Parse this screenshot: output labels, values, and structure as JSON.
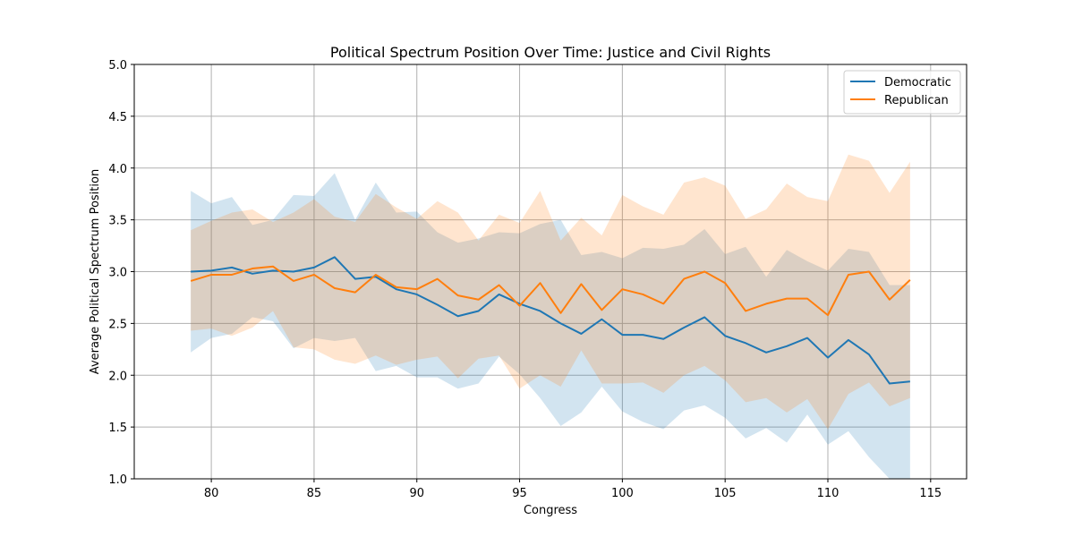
{
  "chart_data": {
    "type": "line",
    "title": "Political Spectrum Position Over Time: Justice and Civil Rights",
    "xlabel": "Congress",
    "ylabel": "Average Political Spectrum Position",
    "xlim": [
      76.25,
      116.75
    ],
    "ylim": [
      1.0,
      5.0
    ],
    "xticks": [
      80,
      85,
      90,
      95,
      100,
      105,
      110,
      115
    ],
    "yticks": [
      1.0,
      1.5,
      2.0,
      2.5,
      3.0,
      3.5,
      4.0,
      4.5,
      5.0
    ],
    "grid": true,
    "legend_position": "top-right",
    "x": [
      79,
      80,
      81,
      82,
      83,
      84,
      85,
      86,
      87,
      88,
      89,
      90,
      91,
      92,
      93,
      94,
      95,
      96,
      97,
      98,
      99,
      100,
      101,
      102,
      103,
      104,
      105,
      106,
      107,
      108,
      109,
      110,
      111,
      112,
      113,
      114
    ],
    "series": [
      {
        "name": "Democratic",
        "color": "#1f77b4",
        "values": [
          3.0,
          3.01,
          3.04,
          2.98,
          3.01,
          3.0,
          3.04,
          3.14,
          2.93,
          2.95,
          2.83,
          2.78,
          2.68,
          2.57,
          2.62,
          2.78,
          2.69,
          2.62,
          2.5,
          2.4,
          2.54,
          2.39,
          2.39,
          2.35,
          2.46,
          2.56,
          2.38,
          2.31,
          2.22,
          2.28,
          2.36,
          2.17,
          2.34,
          2.2,
          1.92,
          1.94
        ],
        "upper": [
          3.78,
          3.66,
          3.72,
          3.45,
          3.5,
          3.74,
          3.73,
          3.95,
          3.5,
          3.86,
          3.57,
          3.58,
          3.38,
          3.28,
          3.32,
          3.38,
          3.37,
          3.46,
          3.5,
          3.16,
          3.19,
          3.13,
          3.23,
          3.22,
          3.26,
          3.41,
          3.17,
          3.24,
          2.95,
          3.21,
          3.1,
          3.01,
          3.22,
          3.19,
          2.87,
          2.87
        ],
        "lower": [
          2.22,
          2.36,
          2.4,
          2.56,
          2.52,
          2.26,
          2.36,
          2.33,
          2.36,
          2.04,
          2.09,
          1.98,
          1.98,
          1.87,
          1.92,
          2.18,
          2.01,
          1.78,
          1.51,
          1.64,
          1.89,
          1.65,
          1.55,
          1.48,
          1.66,
          1.71,
          1.59,
          1.39,
          1.49,
          1.35,
          1.62,
          1.33,
          1.46,
          1.21,
          0.97,
          0.97
        ]
      },
      {
        "name": "Republican",
        "color": "#ff7f0e",
        "values": [
          2.91,
          2.97,
          2.97,
          3.03,
          3.05,
          2.91,
          2.97,
          2.84,
          2.8,
          2.97,
          2.85,
          2.83,
          2.93,
          2.77,
          2.73,
          2.87,
          2.67,
          2.89,
          2.6,
          2.88,
          2.63,
          2.83,
          2.78,
          2.69,
          2.93,
          3.0,
          2.89,
          2.62,
          2.69,
          2.74,
          2.74,
          2.58,
          2.97,
          3.0,
          2.73,
          2.92
        ],
        "upper": [
          3.4,
          3.49,
          3.57,
          3.6,
          3.48,
          3.57,
          3.7,
          3.53,
          3.48,
          3.75,
          3.62,
          3.51,
          3.68,
          3.57,
          3.3,
          3.55,
          3.47,
          3.78,
          3.3,
          3.52,
          3.35,
          3.74,
          3.63,
          3.55,
          3.86,
          3.91,
          3.83,
          3.51,
          3.6,
          3.85,
          3.72,
          3.68,
          4.13,
          4.07,
          3.76,
          4.06
        ],
        "lower": [
          2.43,
          2.45,
          2.38,
          2.46,
          2.62,
          2.27,
          2.25,
          2.15,
          2.11,
          2.19,
          2.1,
          2.15,
          2.18,
          1.97,
          2.16,
          2.19,
          1.87,
          2.0,
          1.89,
          2.24,
          1.92,
          1.92,
          1.93,
          1.83,
          2.0,
          2.09,
          1.95,
          1.74,
          1.78,
          1.64,
          1.77,
          1.48,
          1.82,
          1.93,
          1.7,
          1.78
        ]
      }
    ]
  }
}
